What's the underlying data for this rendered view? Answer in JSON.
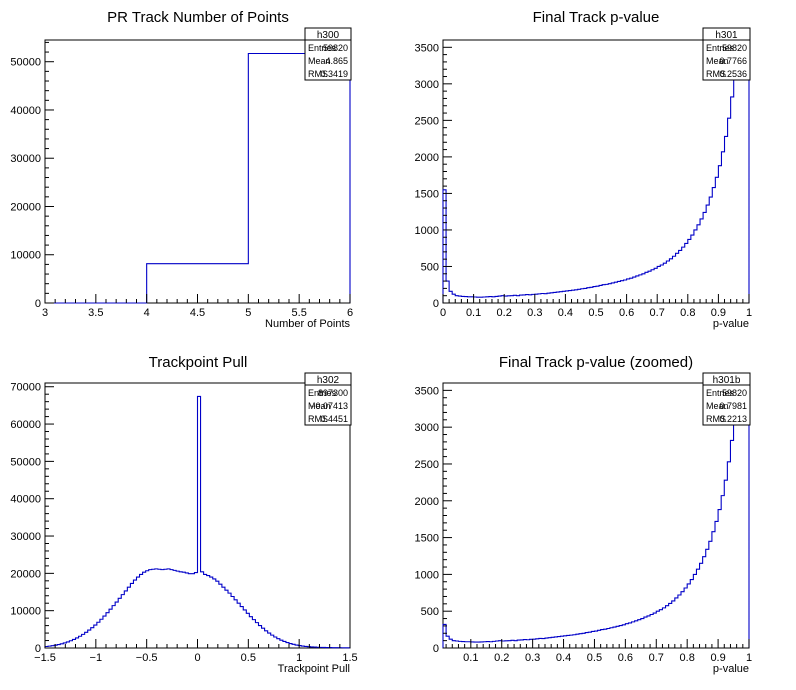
{
  "chart_data": [
    {
      "id": "h300",
      "type": "histogram",
      "title": "PR Track Number of Points",
      "xlabel": "Number of Points",
      "ylabel": "",
      "xlim": [
        3,
        6
      ],
      "ylim": [
        0,
        54500
      ],
      "xticks": [
        3,
        3.5,
        4,
        4.5,
        5,
        5.5,
        6
      ],
      "xtick_labels": [
        "3",
        "3.5",
        "4",
        "4.5",
        "5",
        "5.5",
        "6"
      ],
      "yticks": [
        0,
        10000,
        20000,
        30000,
        40000,
        50000
      ],
      "ytick_labels": [
        "0",
        "10000",
        "20000",
        "30000",
        "40000",
        "50000"
      ],
      "bins": {
        "edges": [
          3,
          4,
          5,
          6
        ],
        "values": [
          0,
          8150,
          51700
        ]
      },
      "stats": {
        "name": "h300",
        "rows": [
          {
            "label": "Entries",
            "value": "59820"
          },
          {
            "label": "Mean",
            "value": "4.865"
          },
          {
            "label": "RMS",
            "value": "0.3419"
          }
        ]
      },
      "color": "#0000c8"
    },
    {
      "id": "h301",
      "type": "histogram",
      "title": "Final Track p-value",
      "xlabel": "p-value",
      "ylabel": "",
      "xlim": [
        0,
        1
      ],
      "ylim": [
        0,
        3600
      ],
      "xticks": [
        0,
        0.1,
        0.2,
        0.3,
        0.4,
        0.5,
        0.6,
        0.7,
        0.8,
        0.9,
        1
      ],
      "xtick_labels": [
        "0",
        "0.1",
        "0.2",
        "0.3",
        "0.4",
        "0.5",
        "0.6",
        "0.7",
        "0.8",
        "0.9",
        "1"
      ],
      "yticks": [
        0,
        500,
        1000,
        1500,
        2000,
        2500,
        3000,
        3500
      ],
      "ytick_labels": [
        "0",
        "500",
        "1000",
        "1500",
        "2000",
        "2500",
        "3000",
        "3500"
      ],
      "bins": {
        "edges_range": [
          0,
          1
        ],
        "nbins": 100,
        "values": [
          1550,
          300,
          160,
          120,
          100,
          95,
          90,
          88,
          85,
          85,
          82,
          80,
          80,
          82,
          85,
          88,
          85,
          90,
          95,
          100,
          95,
          98,
          100,
          105,
          100,
          108,
          110,
          115,
          112,
          118,
          120,
          125,
          130,
          128,
          135,
          140,
          145,
          150,
          155,
          160,
          165,
          170,
          175,
          180,
          188,
          195,
          200,
          210,
          215,
          225,
          230,
          240,
          250,
          255,
          265,
          275,
          285,
          295,
          305,
          315,
          330,
          340,
          355,
          370,
          385,
          400,
          420,
          435,
          455,
          475,
          500,
          520,
          545,
          575,
          605,
          640,
          680,
          720,
          765,
          815,
          870,
          930,
          1000,
          1070,
          1150,
          1240,
          1340,
          1450,
          1580,
          1720,
          1880,
          2070,
          2280,
          2530,
          2820,
          3150,
          3550,
          4000,
          4500,
          5200
        ]
      },
      "stats": {
        "name": "h301",
        "rows": [
          {
            "label": "Entries",
            "value": "59820"
          },
          {
            "label": "Mean",
            "value": "0.7766"
          },
          {
            "label": "RMS",
            "value": "0.2536"
          }
        ]
      },
      "color": "#0000c8"
    },
    {
      "id": "h302",
      "type": "histogram",
      "title": "Trackpoint Pull",
      "xlabel": "Trackpoint Pull",
      "ylabel": "",
      "xlim": [
        -1.5,
        1.5
      ],
      "ylim": [
        0,
        71000
      ],
      "xticks": [
        -1.5,
        -1,
        -0.5,
        0,
        0.5,
        1,
        1.5
      ],
      "xtick_labels": [
        "−1.5",
        "−1",
        "−0.5",
        "0",
        "0.5",
        "1",
        "1.5"
      ],
      "yticks": [
        0,
        10000,
        20000,
        30000,
        40000,
        50000,
        60000,
        70000
      ],
      "ytick_labels": [
        "0",
        "10000",
        "20000",
        "30000",
        "40000",
        "50000",
        "60000",
        "70000"
      ],
      "bins": {
        "edges_range": [
          -1.5,
          1.5
        ],
        "nbins": 100,
        "values": [
          400,
          500,
          620,
          760,
          930,
          1130,
          1360,
          1630,
          1940,
          2300,
          2700,
          3150,
          3650,
          4200,
          4800,
          5450,
          6150,
          6900,
          7700,
          8550,
          9450,
          10400,
          11350,
          12300,
          13300,
          14300,
          15300,
          16300,
          17300,
          18200,
          19000,
          19700,
          20300,
          20700,
          21000,
          21100,
          21200,
          21100,
          21000,
          21100,
          21200,
          21000,
          20800,
          20600,
          20400,
          20300,
          20100,
          19900,
          19900,
          20200,
          67400,
          20400,
          19700,
          19400,
          19000,
          18500,
          17900,
          17100,
          16300,
          15500,
          14700,
          13800,
          12900,
          12000,
          11100,
          10200,
          9300,
          8400,
          7600,
          6800,
          6000,
          5300,
          4600,
          4000,
          3450,
          2950,
          2500,
          2100,
          1750,
          1450,
          1200,
          980,
          800,
          650,
          530,
          430,
          350,
          290,
          240,
          200,
          170,
          145,
          125,
          110,
          95,
          85,
          75,
          65,
          58,
          52
        ]
      },
      "stats": {
        "name": "h302",
        "rows": [
          {
            "label": "Entries",
            "value": "897300"
          },
          {
            "label": "Mean",
            "value": "−0.07413"
          },
          {
            "label": "RMS",
            "value": "0.4451"
          }
        ]
      },
      "color": "#0000c8"
    },
    {
      "id": "h301b",
      "type": "histogram",
      "title": "Final Track p-value (zoomed)",
      "xlabel": "p-value",
      "ylabel": "",
      "xlim": [
        0.01,
        1
      ],
      "ylim": [
        0,
        3600
      ],
      "xticks": [
        0.1,
        0.2,
        0.3,
        0.4,
        0.5,
        0.6,
        0.7,
        0.8,
        0.9,
        1
      ],
      "xtick_labels": [
        "0.1",
        "0.2",
        "0.3",
        "0.4",
        "0.5",
        "0.6",
        "0.7",
        "0.8",
        "0.9",
        "1"
      ],
      "yticks": [
        0,
        500,
        1000,
        1500,
        2000,
        2500,
        3000,
        3500
      ],
      "ytick_labels": [
        "0",
        "500",
        "1000",
        "1500",
        "2000",
        "2500",
        "3000",
        "3500"
      ],
      "bins": {
        "edges_range": [
          0.01,
          1
        ],
        "nbins": 99,
        "values": [
          320,
          160,
          120,
          100,
          95,
          90,
          88,
          85,
          85,
          82,
          80,
          80,
          82,
          85,
          88,
          85,
          90,
          95,
          100,
          95,
          98,
          100,
          105,
          100,
          108,
          110,
          115,
          112,
          118,
          120,
          125,
          130,
          128,
          135,
          140,
          145,
          150,
          155,
          160,
          165,
          170,
          175,
          180,
          188,
          195,
          200,
          210,
          215,
          225,
          230,
          240,
          250,
          255,
          265,
          275,
          285,
          295,
          305,
          315,
          330,
          340,
          355,
          370,
          385,
          400,
          420,
          435,
          455,
          475,
          500,
          520,
          545,
          575,
          605,
          640,
          680,
          720,
          765,
          815,
          870,
          930,
          1000,
          1070,
          1150,
          1240,
          1340,
          1450,
          1580,
          1720,
          1880,
          2070,
          2280,
          2530,
          2820,
          3150,
          3550,
          4000,
          4500,
          5200
        ]
      },
      "stats": {
        "name": "h301b",
        "rows": [
          {
            "label": "Entries",
            "value": "59820"
          },
          {
            "label": "Mean",
            "value": "0.7981"
          },
          {
            "label": "RMS",
            "value": "0.2213"
          }
        ]
      },
      "color": "#0000c8"
    }
  ]
}
